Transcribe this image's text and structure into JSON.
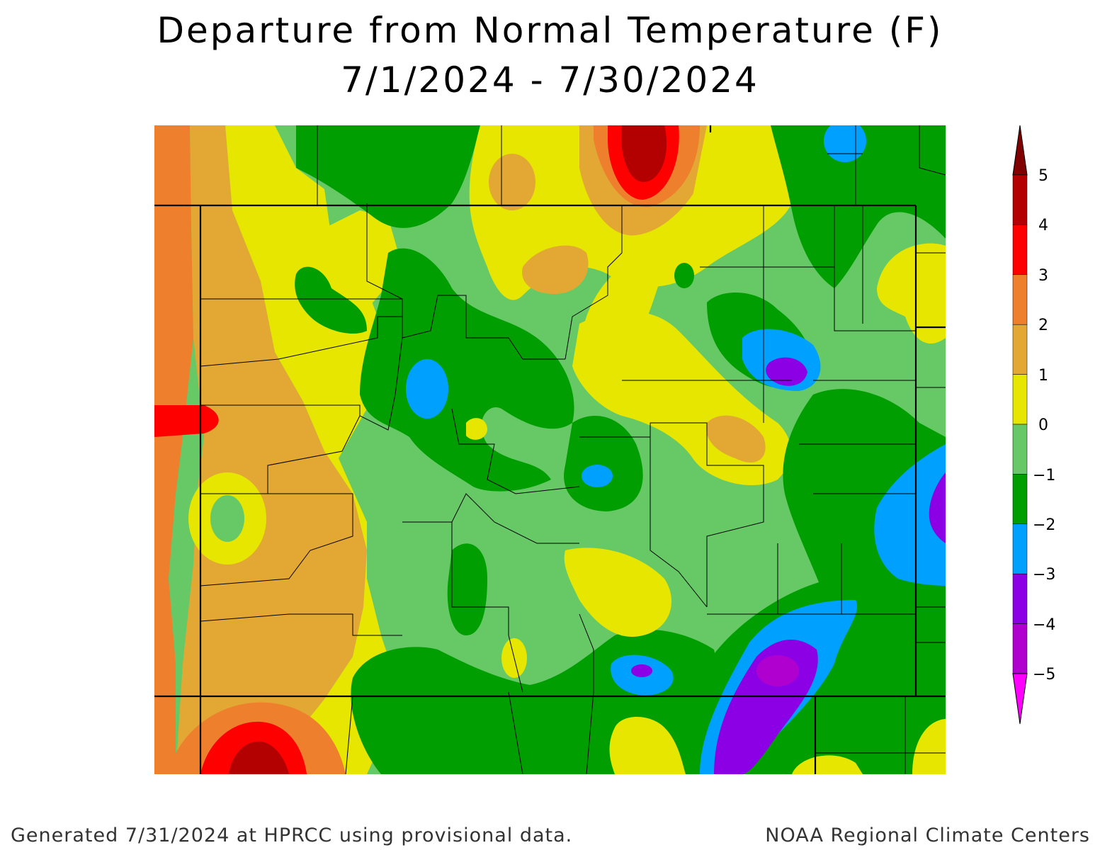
{
  "title": "Departure from Normal Temperature (F)",
  "subtitle": "7/1/2024 - 7/30/2024",
  "legend": {
    "ticks": [
      "5",
      "4",
      "3",
      "2",
      "1",
      "0",
      "−1",
      "−2",
      "−3",
      "−4",
      "−5"
    ],
    "bins": [
      {
        "range": "4 to 5",
        "color": "#b30000"
      },
      {
        "range": "3 to 4",
        "color": "#ff0000"
      },
      {
        "range": "2 to 3",
        "color": "#ee7f2d"
      },
      {
        "range": "1 to 2",
        "color": "#e3a833"
      },
      {
        "range": "0 to 1",
        "color": "#e6e600"
      },
      {
        "range": "-1 to 0",
        "color": "#66c966"
      },
      {
        "range": "-2 to -1",
        "color": "#009e00"
      },
      {
        "range": "-3 to -2",
        "color": "#00a0ff"
      },
      {
        "range": "-4 to -3",
        "color": "#8c00e6"
      },
      {
        "range": "-5 to -4",
        "color": "#b000d0"
      }
    ],
    "top_arrow_color": "#800000",
    "bottom_arrow_color": "#ff00ff"
  },
  "footer_left": "Generated 7/31/2024 at HPRCC using provisional data.",
  "footer_right": "NOAA Regional Climate Centers"
}
